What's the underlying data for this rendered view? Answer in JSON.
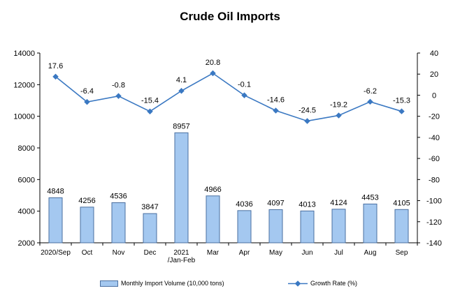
{
  "chart_data": {
    "type": "bar",
    "title": "Crude Oil Imports",
    "categories": [
      "2020/Sep",
      "Oct",
      "Nov",
      "Dec",
      "2021\n/Jan-Feb",
      "Mar",
      "Apr",
      "May",
      "Jun",
      "Jul",
      "Aug",
      "Sep"
    ],
    "series": [
      {
        "name": "Monthly Import Volume (10,000 tons)",
        "type": "bar",
        "axis": "left",
        "values": [
          4848,
          4256,
          4536,
          3847,
          8957,
          4966,
          4036,
          4097,
          4013,
          4124,
          4453,
          4105
        ],
        "labels": [
          "4848",
          "4256",
          "4536",
          "3847",
          "8957",
          "4966",
          "4036",
          "4097",
          "4013",
          "4124",
          "4453",
          "4105"
        ]
      },
      {
        "name": "Growth Rate (%)",
        "type": "line",
        "axis": "right",
        "values": [
          17.6,
          -6.4,
          -0.8,
          -15.4,
          4.1,
          20.8,
          -0.1,
          -14.6,
          -24.5,
          -19.2,
          -6.2,
          -15.3
        ],
        "labels": [
          "17.6",
          "-6.4",
          "-0.8",
          "-15.4",
          "4.1",
          "20.8",
          "-0.1",
          "-14.6",
          "-24.5",
          "-19.2",
          "-6.2",
          "-15.3"
        ]
      }
    ],
    "y_left": {
      "range": [
        2000,
        14000
      ],
      "ticks": [
        "2000",
        "4000",
        "6000",
        "8000",
        "10000",
        "12000",
        "14000"
      ]
    },
    "y_right": {
      "range": [
        -140,
        40
      ],
      "ticks": [
        "-140",
        "-120",
        "-100",
        "-80",
        "-60",
        "-40",
        "-20",
        "0",
        "20",
        "40"
      ]
    },
    "grid": false,
    "legend_position": "bottom",
    "colors": {
      "bar_fill": "#a4c8f0",
      "bar_stroke": "#4a6fa0",
      "line": "#3a78c2",
      "axis": "#000000"
    }
  }
}
